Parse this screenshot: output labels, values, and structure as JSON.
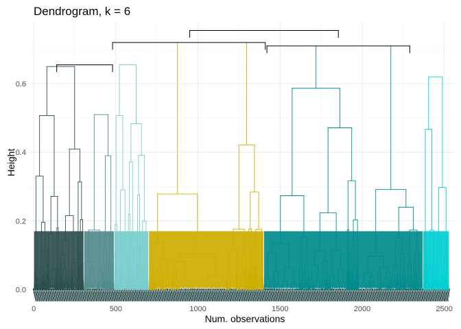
{
  "chart_data": {
    "type": "dendrogram",
    "title": "Dendrogram, k = 6",
    "xlabel": "Num. observations",
    "ylabel": "Height",
    "xlim": [
      -30,
      2560
    ],
    "ylim": [
      -0.035,
      0.78
    ],
    "x_ticks": [
      0,
      500,
      1000,
      1500,
      2000,
      2500
    ],
    "x_tick_labels": [
      "0",
      "500",
      "1000",
      "1500",
      "2000",
      "2500"
    ],
    "y_ticks": [
      0.0,
      0.2,
      0.4,
      0.6
    ],
    "y_tick_labels": [
      "0.0",
      "0.2",
      "0.4",
      "0.6"
    ],
    "grid": true,
    "legend": "none",
    "k": 6,
    "n_observations": 2530,
    "colors": {
      "root": "#000000",
      "label_rows": "#2f4f4f",
      "grid": "#ebebeb"
    },
    "clusters": [
      {
        "id": 1,
        "color": "#2F4F4F",
        "x_range": [
          0,
          305
        ],
        "height": 0.65
      },
      {
        "id": 2,
        "color": "#528B8B",
        "x_range": [
          305,
          490
        ],
        "height": 0.51
      },
      {
        "id": 3,
        "color": "#79CDCD",
        "x_range": [
          490,
          700
        ],
        "height": 0.655
      },
      {
        "id": 4,
        "color": "#CDAD00",
        "x_range": [
          700,
          1400
        ],
        "height": 0.72
      },
      {
        "id": 5,
        "color": "#008B8B",
        "x_range": [
          1400,
          2370
        ],
        "height": 0.71
      },
      {
        "id": 6,
        "color": "#00CED1",
        "x_range": [
          2370,
          2530
        ],
        "height": 0.62
      }
    ],
    "merges": [
      {
        "left": 140,
        "right": 480,
        "height": 0.655,
        "color": "#000000"
      },
      {
        "left": 480,
        "right": 1410,
        "height": 0.72,
        "color": "#000000"
      },
      {
        "left": 1420,
        "right": 2290,
        "height": 0.71,
        "color": "#000000"
      },
      {
        "left": 950,
        "right": 1855,
        "height": 0.755,
        "color": "#000000"
      }
    ]
  }
}
